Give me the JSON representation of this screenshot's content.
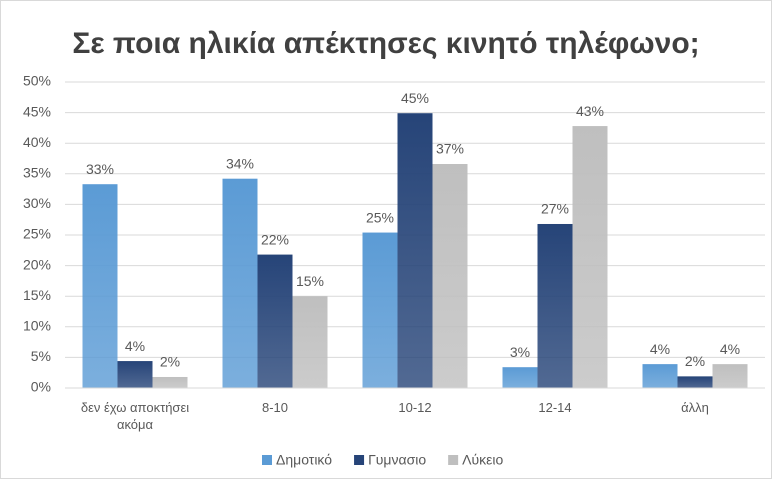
{
  "chart_data": {
    "type": "bar",
    "title": "Σε ποια ηλικία απέκτησες κινητό τηλέφωνο;",
    "categories": [
      "δεν έχω αποκτήσει ακόμα",
      "8-10",
      "10-12",
      "12-14",
      "άλλη"
    ],
    "series": [
      {
        "name": "Δημοτικό",
        "color": "#5b9bd5",
        "values": [
          33.3,
          34.2,
          25.4,
          3.4,
          3.9
        ],
        "value_labels": [
          "33%",
          "34%",
          "25%",
          "3%",
          "4%"
        ]
      },
      {
        "name": "Γυμνασιο",
        "color": "#264478",
        "values": [
          4.4,
          21.8,
          44.9,
          26.8,
          1.9
        ],
        "value_labels": [
          "4%",
          "22%",
          "45%",
          "27%",
          "2%"
        ]
      },
      {
        "name": "Λύκειο",
        "color": "#bfbfbf",
        "values": [
          1.8,
          15.0,
          36.6,
          42.8,
          3.9
        ],
        "value_labels": [
          "2%",
          "15%",
          "37%",
          "43%",
          "4%"
        ]
      }
    ],
    "ylim": [
      0,
      50
    ],
    "yticks": [
      {
        "value": 0,
        "label": "0%"
      },
      {
        "value": 5,
        "label": "5%"
      },
      {
        "value": 10,
        "label": "10%"
      },
      {
        "value": 15,
        "label": "15%"
      },
      {
        "value": 20,
        "label": "20%"
      },
      {
        "value": 25,
        "label": "25%"
      },
      {
        "value": 30,
        "label": "30%"
      },
      {
        "value": 35,
        "label": "35%"
      },
      {
        "value": 40,
        "label": "40%"
      },
      {
        "value": 45,
        "label": "45%"
      },
      {
        "value": 50,
        "label": "50%"
      }
    ],
    "grid": true,
    "legend": "bottom"
  }
}
